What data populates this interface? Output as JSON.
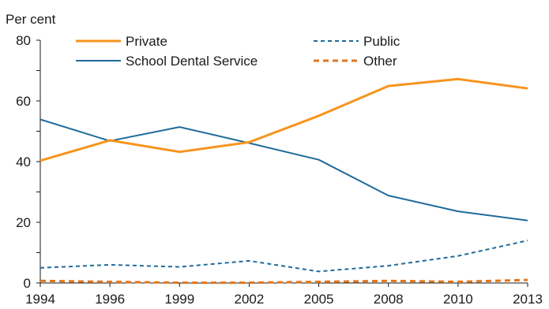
{
  "chart_data": {
    "type": "line",
    "title": "",
    "ylabel": "Per cent",
    "xlabel": "",
    "ylim": [
      0,
      80
    ],
    "yticks": [
      0,
      20,
      40,
      60,
      80
    ],
    "x": [
      "1994",
      "1996",
      "1999",
      "2002",
      "2005",
      "2008",
      "2010",
      "2013"
    ],
    "grid": false,
    "legend_position": "top",
    "series": [
      {
        "name": "Private",
        "color": "#F7941D",
        "dash": "solid",
        "values": [
          40.3,
          47.0,
          43.2,
          46.4,
          55.1,
          64.9,
          67.2,
          64.1
        ]
      },
      {
        "name": "School Dental Service",
        "color": "#1F6B9A",
        "dash": "solid",
        "values": [
          53.9,
          46.8,
          51.4,
          46.1,
          40.6,
          28.8,
          23.6,
          20.6
        ]
      },
      {
        "name": "Public",
        "color": "#1F6B9A",
        "dash": "dashed",
        "values": [
          5.0,
          6.0,
          5.3,
          7.3,
          3.8,
          5.7,
          8.9,
          14.0
        ]
      },
      {
        "name": "Other",
        "color": "#E2761B",
        "dash": "dashed",
        "values": [
          0.7,
          0.4,
          0.1,
          0.1,
          0.4,
          0.7,
          0.4,
          1.0
        ]
      }
    ]
  }
}
